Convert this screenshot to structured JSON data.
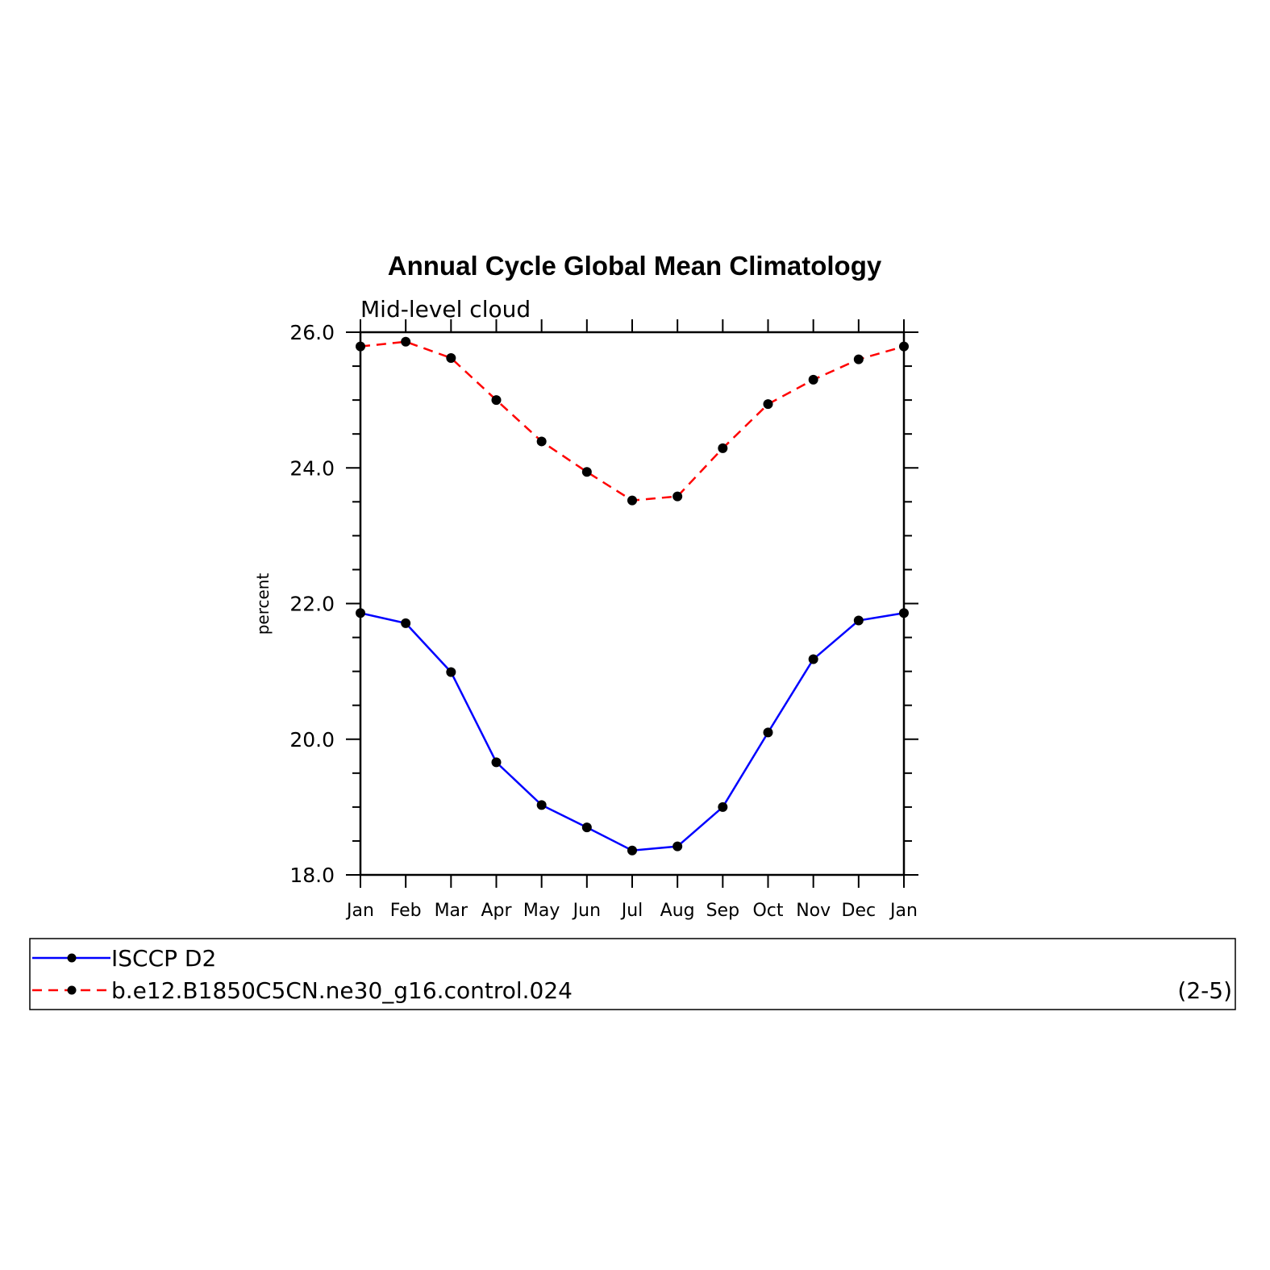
{
  "chart_data": {
    "type": "line",
    "title": "Annual Cycle Global Mean Climatology",
    "subtitle": "Mid-level cloud",
    "ylabel": "percent",
    "xlabel": "",
    "categories": [
      "Jan",
      "Feb",
      "Mar",
      "Apr",
      "May",
      "Jun",
      "Jul",
      "Aug",
      "Sep",
      "Oct",
      "Nov",
      "Dec",
      "Jan"
    ],
    "ylim": [
      18.0,
      26.0
    ],
    "yticks": [
      "18.0",
      "20.0",
      "22.0",
      "24.0",
      "26.0"
    ],
    "grid": false,
    "legend_position": "bottom",
    "series": [
      {
        "name": "ISCCP D2",
        "color": "#0000ff",
        "style": "solid",
        "values": [
          21.86,
          21.71,
          20.99,
          19.66,
          19.03,
          18.7,
          18.36,
          18.42,
          19.0,
          20.1,
          21.18,
          21.75,
          21.86
        ]
      },
      {
        "name": "b.e12.B1850C5CN.ne30_g16.control.024",
        "color": "#ff0000",
        "style": "dashed",
        "values": [
          25.79,
          25.86,
          25.62,
          25.0,
          24.39,
          23.94,
          23.52,
          23.58,
          24.29,
          24.94,
          25.3,
          25.6,
          25.79
        ]
      }
    ],
    "panel_label": "(2-5)"
  }
}
